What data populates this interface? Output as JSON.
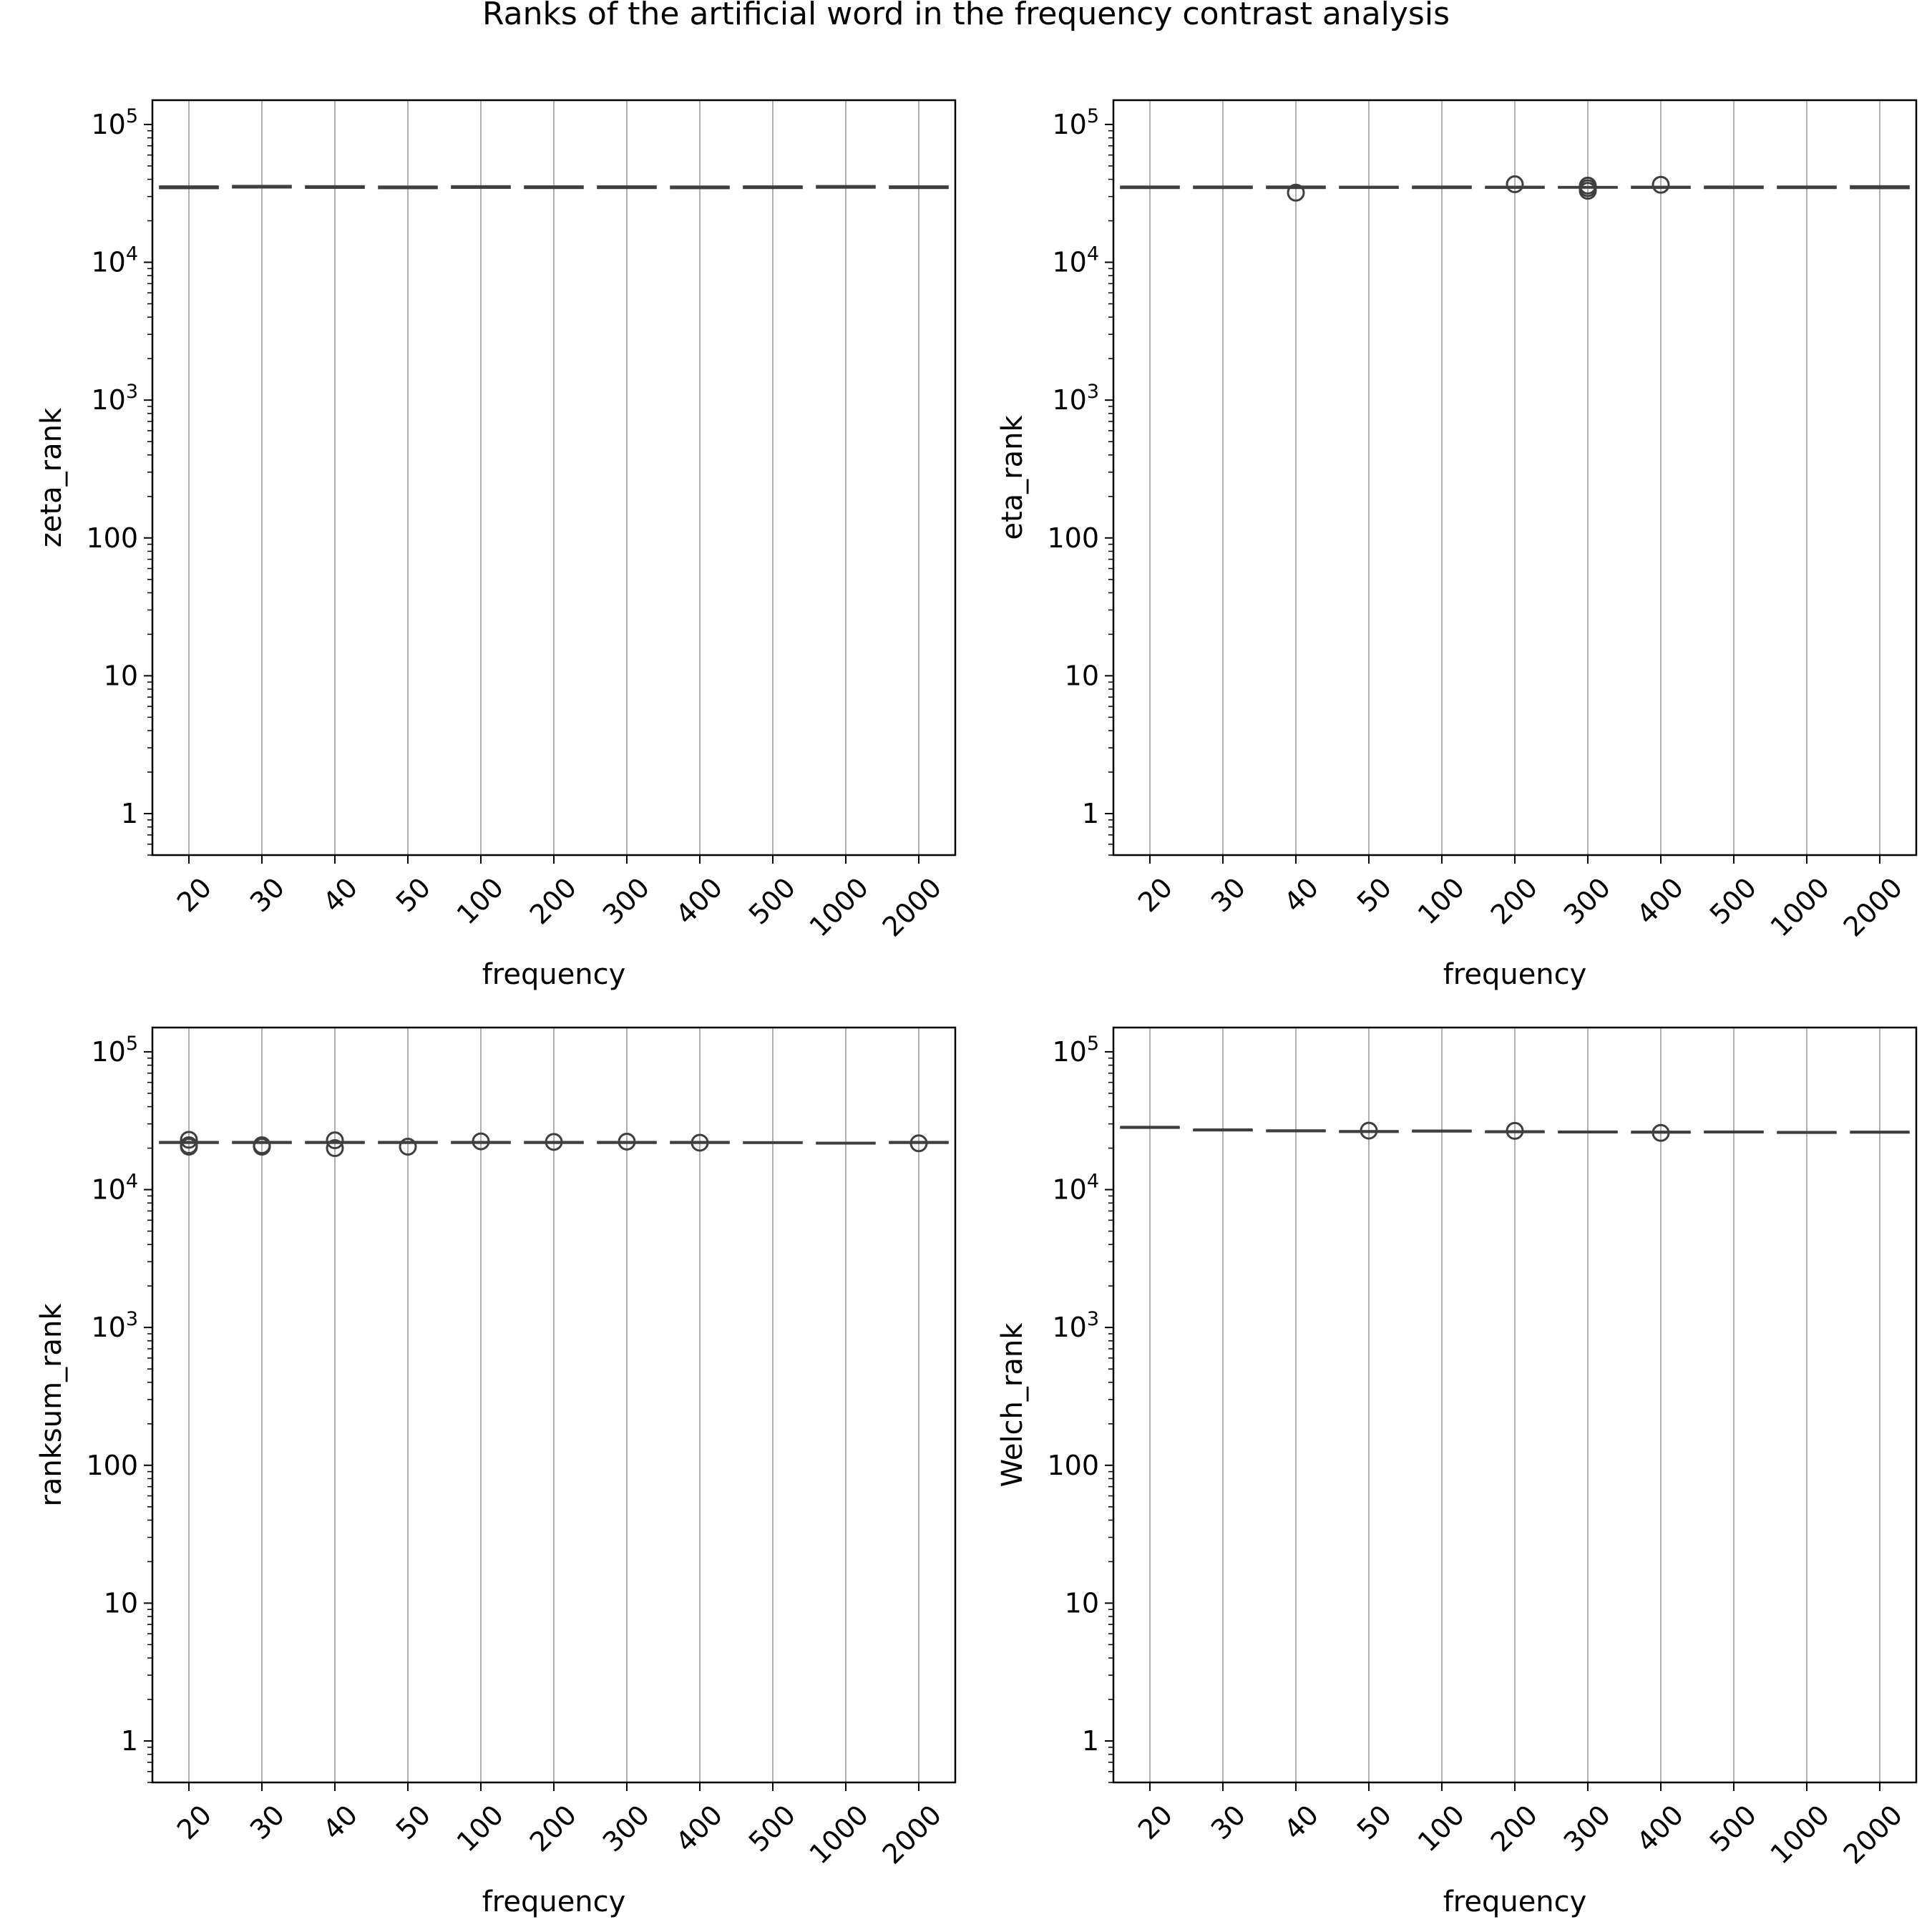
{
  "figure": {
    "title": "Ranks of the artificial word in the frequency contrast analysis"
  },
  "chart_data": [
    {
      "type": "box",
      "xlabel": "frequency",
      "ylabel": "zeta_rank",
      "yscale": "log",
      "ylim": [
        0.5,
        150000
      ],
      "grid": "x",
      "categories": [
        "20",
        "30",
        "40",
        "50",
        "100",
        "200",
        "300",
        "400",
        "500",
        "1000",
        "2000"
      ],
      "yticks": [
        "1",
        "10",
        "100",
        "10^3",
        "10^4",
        "10^5"
      ],
      "medians": [
        35000,
        35300,
        35200,
        34900,
        35100,
        35000,
        35000,
        34900,
        35000,
        35200,
        35000
      ],
      "q1": [
        34300,
        34700,
        34500,
        34300,
        34500,
        34400,
        34400,
        34300,
        34400,
        34600,
        34400
      ],
      "q3": [
        35700,
        36000,
        35800,
        35600,
        35800,
        35700,
        35700,
        35600,
        35700,
        35900,
        35700
      ],
      "outliers": [
        [],
        [],
        [],
        [],
        [],
        [],
        [],
        [],
        [],
        [],
        []
      ]
    },
    {
      "type": "box",
      "xlabel": "frequency",
      "ylabel": "eta_rank",
      "yscale": "log",
      "ylim": [
        0.5,
        150000
      ],
      "grid": "x",
      "categories": [
        "20",
        "30",
        "40",
        "50",
        "100",
        "200",
        "300",
        "400",
        "500",
        "1000",
        "2000"
      ],
      "yticks": [
        "1",
        "10",
        "100",
        "10^3",
        "10^4",
        "10^5"
      ],
      "medians": [
        35000,
        35000,
        35000,
        35000,
        35000,
        35000,
        35000,
        35000,
        35000,
        35000,
        35000
      ],
      "q1": [
        34400,
        34400,
        34400,
        34500,
        34400,
        34500,
        34600,
        34500,
        34400,
        34400,
        34300
      ],
      "q3": [
        35600,
        35600,
        35600,
        35500,
        35600,
        35500,
        35400,
        35500,
        35600,
        35600,
        35800
      ],
      "outliers": [
        [],
        [],
        [
          32000
        ],
        [],
        [],
        [
          36800
        ],
        [
          33000,
          34500,
          36000
        ],
        [
          36500
        ],
        [],
        [],
        []
      ]
    },
    {
      "type": "box",
      "xlabel": "frequency",
      "ylabel": "ranksum_rank",
      "yscale": "log",
      "ylim": [
        0.5,
        150000
      ],
      "grid": "x",
      "categories": [
        "20",
        "30",
        "40",
        "50",
        "100",
        "200",
        "300",
        "400",
        "500",
        "1000",
        "2000"
      ],
      "yticks": [
        "1",
        "10",
        "100",
        "10^3",
        "10^4",
        "10^5"
      ],
      "medians": [
        22000,
        22000,
        22000,
        22000,
        22000,
        22000,
        22000,
        22000,
        22000,
        21800,
        22000
      ],
      "q1": [
        21700,
        21700,
        21700,
        21700,
        21700,
        21700,
        21700,
        21700,
        21800,
        21600,
        21700
      ],
      "q3": [
        22300,
        22300,
        22300,
        22300,
        22300,
        22300,
        22300,
        22300,
        22200,
        22000,
        22300
      ],
      "outliers": [
        [
          23000,
          21000,
          20500
        ],
        [
          21000,
          20500
        ],
        [
          22800,
          20000
        ],
        [
          20500
        ],
        [
          22400
        ],
        [
          22200
        ],
        [
          22300
        ],
        [
          21900
        ],
        [],
        [],
        [
          21700
        ]
      ]
    },
    {
      "type": "box",
      "xlabel": "frequency",
      "ylabel": "Welch_rank",
      "yscale": "log",
      "ylim": [
        0.5,
        150000
      ],
      "grid": "x",
      "categories": [
        "20",
        "30",
        "40",
        "50",
        "100",
        "200",
        "300",
        "400",
        "500",
        "1000",
        "2000"
      ],
      "yticks": [
        "1",
        "10",
        "100",
        "10^3",
        "10^4",
        "10^5"
      ],
      "medians": [
        28500,
        27300,
        26900,
        26600,
        26800,
        26500,
        26400,
        26300,
        26400,
        26200,
        26300
      ],
      "q1": [
        28400,
        27200,
        26800,
        26500,
        26700,
        26400,
        26300,
        26200,
        26300,
        26100,
        26200
      ],
      "q3": [
        28600,
        27400,
        27000,
        26700,
        26900,
        26600,
        26500,
        26400,
        26500,
        26300,
        26400
      ],
      "outliers": [
        [],
        [],
        [],
        [
          26800
        ],
        [],
        [
          26700
        ],
        [],
        [
          25800
        ],
        [],
        [],
        []
      ]
    }
  ]
}
